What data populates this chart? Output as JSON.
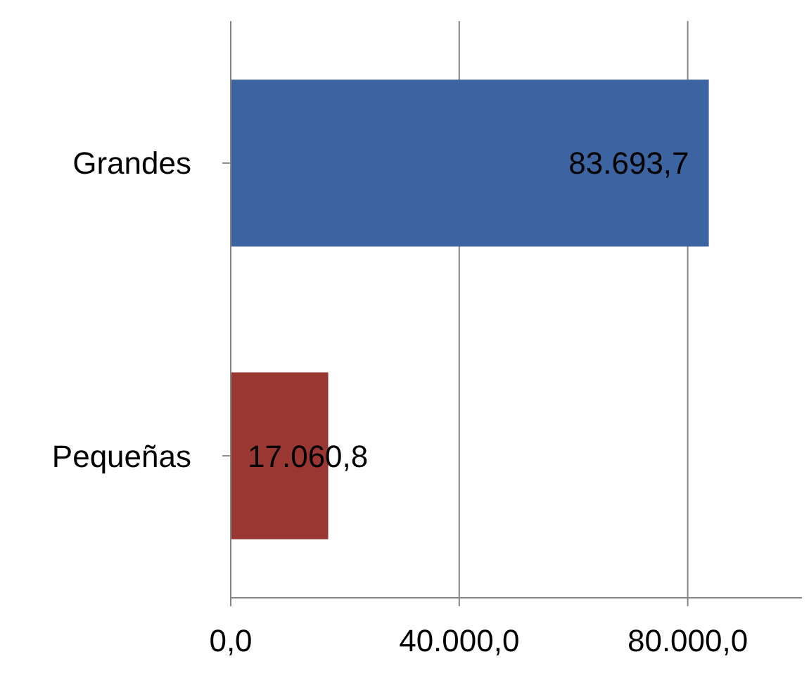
{
  "chart_data": {
    "type": "bar",
    "orientation": "horizontal",
    "categories": [
      "Grandes",
      "Pequeñas"
    ],
    "series": [
      {
        "colors": [
          "#3b64a0",
          "#9b3733"
        ],
        "values": [
          83693.7,
          17060.8
        ],
        "value_labels": [
          "83.693,7",
          "17.060,8"
        ]
      }
    ],
    "xlim": [
      0,
      100000
    ],
    "xticks": [
      {
        "value": 0,
        "label": "0,0"
      },
      {
        "value": 40000,
        "label": "40.000,0"
      },
      {
        "value": 80000,
        "label": "80.000,0"
      }
    ],
    "grid": "x"
  }
}
